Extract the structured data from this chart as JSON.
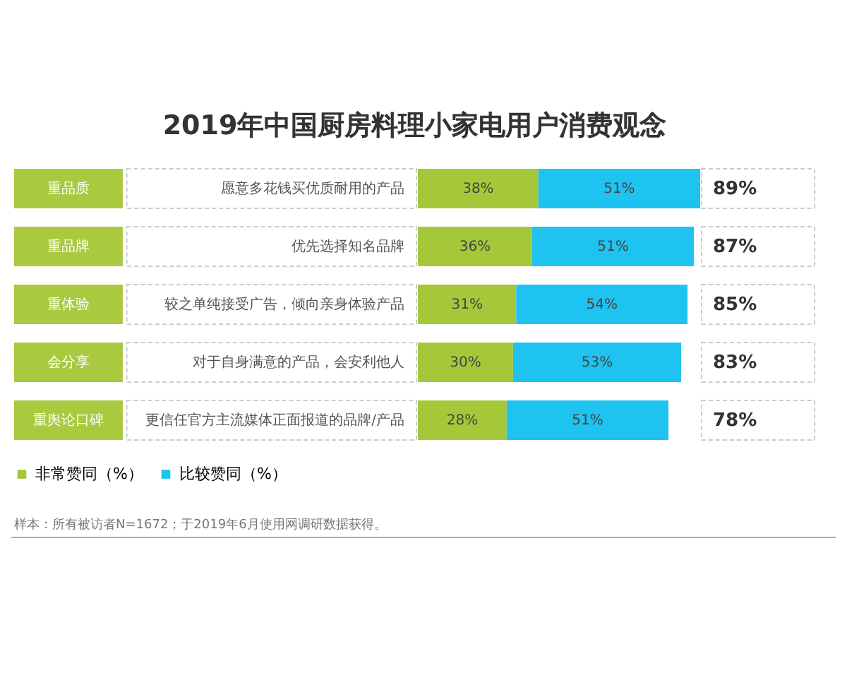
{
  "chart_data": {
    "type": "bar",
    "orientation": "horizontal",
    "stacked": true,
    "title": "2019年中国厨房料理小家电用户消费观念",
    "categories": [
      "重品质",
      "重品牌",
      "重体验",
      "会分享",
      "重舆论口碑"
    ],
    "series": [
      {
        "name": "非常赞同（%）",
        "color": "#a5c83a",
        "values": [
          38,
          36,
          31,
          30,
          28
        ],
        "value_labels": [
          "38%",
          "36%",
          "31%",
          "30%",
          "28%"
        ]
      },
      {
        "name": "比较赞同（%）",
        "color": "#1ec3ef",
        "values": [
          51,
          51,
          54,
          53,
          51
        ],
        "value_labels": [
          "51%",
          "51%",
          "54%",
          "53%",
          "51%"
        ]
      }
    ],
    "totals": [
      "89%",
      "87%",
      "85%",
      "83%",
      "78%"
    ],
    "legend": "bottom",
    "annotations": [
      "愿意多花钱买优质耐用的产品",
      "优先选择知名品牌",
      "较之单纯接受广告，倾向亲身体验产品",
      "对于自身满意的产品，会安利他人",
      "更信任官方主流媒体正面报道的品牌/产品",
      "样本：所有被访者N=1672；于2019年6月使用网调研数据获得。"
    ]
  }
}
